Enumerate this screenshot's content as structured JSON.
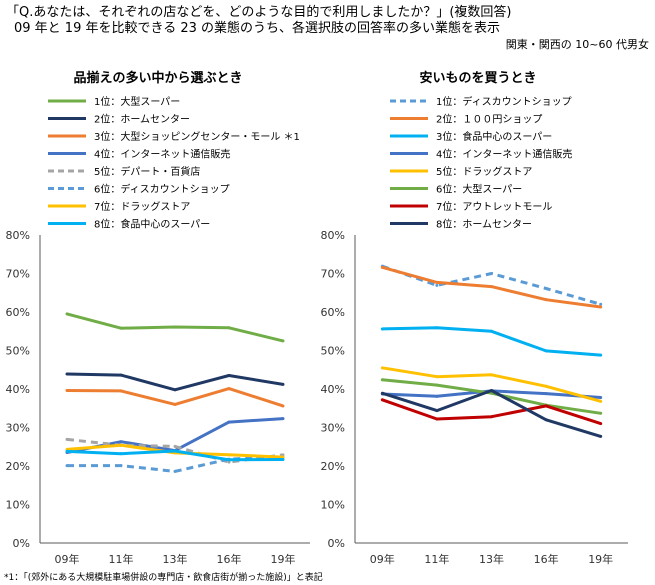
{
  "header": {
    "title_line1": "「Q.あなたは、それぞれの店などを、どのような目的で利用しましたか？」(複数回答)",
    "title_line2": "09 年と 19 年を比較できる 23 の業態のうち、各選択肢の回答率の多い業態を表示",
    "subtitle": "関東・関西の 10~60 代男女"
  },
  "footnote": "*1：「(郊外にある大規模駐車場併設の専門店・飲食店街が揃った施設)」と表記",
  "chart_data": [
    {
      "type": "line",
      "title": "品揃えの多い中から選ぶとき",
      "categories": [
        "09年",
        "11年",
        "13年",
        "16年",
        "19年"
      ],
      "ylim": [
        0,
        80
      ],
      "yticks": [
        "0%",
        "10%",
        "20%",
        "30%",
        "40%",
        "50%",
        "60%",
        "70%",
        "80%"
      ],
      "grid": false,
      "legend_position": "top",
      "series": [
        {
          "name": "1位：大型スーパー",
          "color": "#70ad47",
          "dash": false,
          "values": [
            59.5,
            55.8,
            56.1,
            55.9,
            52.5
          ]
        },
        {
          "name": "2位：ホームセンター",
          "color": "#203864",
          "dash": false,
          "values": [
            43.9,
            43.6,
            39.8,
            43.5,
            41.2
          ]
        },
        {
          "name": "3位：大型ショッピングセンター・モール ＊1",
          "color": "#ed7d31",
          "dash": false,
          "values": [
            39.6,
            39.5,
            36.0,
            40.1,
            35.6
          ]
        },
        {
          "name": "4位：インターネット通信販売",
          "color": "#4472c4",
          "dash": false,
          "values": [
            23.5,
            26.3,
            24.0,
            31.4,
            32.3
          ]
        },
        {
          "name": "5位：デパート・百貨店",
          "color": "#a5a5a5",
          "dash": true,
          "values": [
            26.9,
            25.4,
            25.1,
            21.0,
            22.9
          ]
        },
        {
          "name": "6位：ディスカウントショップ",
          "color": "#5b9bd5",
          "dash": true,
          "values": [
            20.1,
            20.1,
            18.6,
            21.8,
            22.3
          ]
        },
        {
          "name": "7位：ドラッグストア",
          "color": "#ffc000",
          "dash": false,
          "values": [
            24.3,
            25.4,
            23.4,
            22.9,
            22.3
          ]
        },
        {
          "name": "8位：食品中心のスーパー",
          "color": "#00b0f0",
          "dash": false,
          "values": [
            23.8,
            23.2,
            23.9,
            21.6,
            21.7
          ]
        }
      ]
    },
    {
      "type": "line",
      "title": "安いものを買うとき",
      "categories": [
        "09年",
        "11年",
        "13年",
        "16年",
        "19年"
      ],
      "ylim": [
        0,
        80
      ],
      "yticks": [
        "0%",
        "10%",
        "20%",
        "30%",
        "40%",
        "50%",
        "60%",
        "70%",
        "80%"
      ],
      "grid": false,
      "legend_position": "top",
      "series": [
        {
          "name": "1位：ディスカウントショップ",
          "color": "#5b9bd5",
          "dash": true,
          "values": [
            71.9,
            66.9,
            70.0,
            66.1,
            62.0
          ]
        },
        {
          "name": "2位：１００円ショップ",
          "color": "#ed7d31",
          "dash": false,
          "values": [
            71.6,
            67.7,
            66.6,
            63.2,
            61.3
          ]
        },
        {
          "name": "3位：食品中心のスーパー",
          "color": "#00b0f0",
          "dash": false,
          "values": [
            55.6,
            55.9,
            55.0,
            49.9,
            48.8
          ]
        },
        {
          "name": "4位：インターネット通信販売",
          "color": "#4472c4",
          "dash": false,
          "values": [
            38.7,
            38.1,
            39.5,
            38.8,
            37.8
          ]
        },
        {
          "name": "5位：ドラッグストア",
          "color": "#ffc000",
          "dash": false,
          "values": [
            45.5,
            43.2,
            43.7,
            40.7,
            36.8
          ]
        },
        {
          "name": "6位：大型スーパー",
          "color": "#70ad47",
          "dash": false,
          "values": [
            42.4,
            41.0,
            38.9,
            35.8,
            33.7
          ]
        },
        {
          "name": "7位：アウトレットモール",
          "color": "#c00000",
          "dash": false,
          "values": [
            37.2,
            32.2,
            32.8,
            35.6,
            31.0
          ]
        },
        {
          "name": "8位：ホームセンター",
          "color": "#203864",
          "dash": false,
          "values": [
            38.9,
            34.4,
            39.6,
            32.0,
            27.7
          ]
        }
      ]
    }
  ]
}
